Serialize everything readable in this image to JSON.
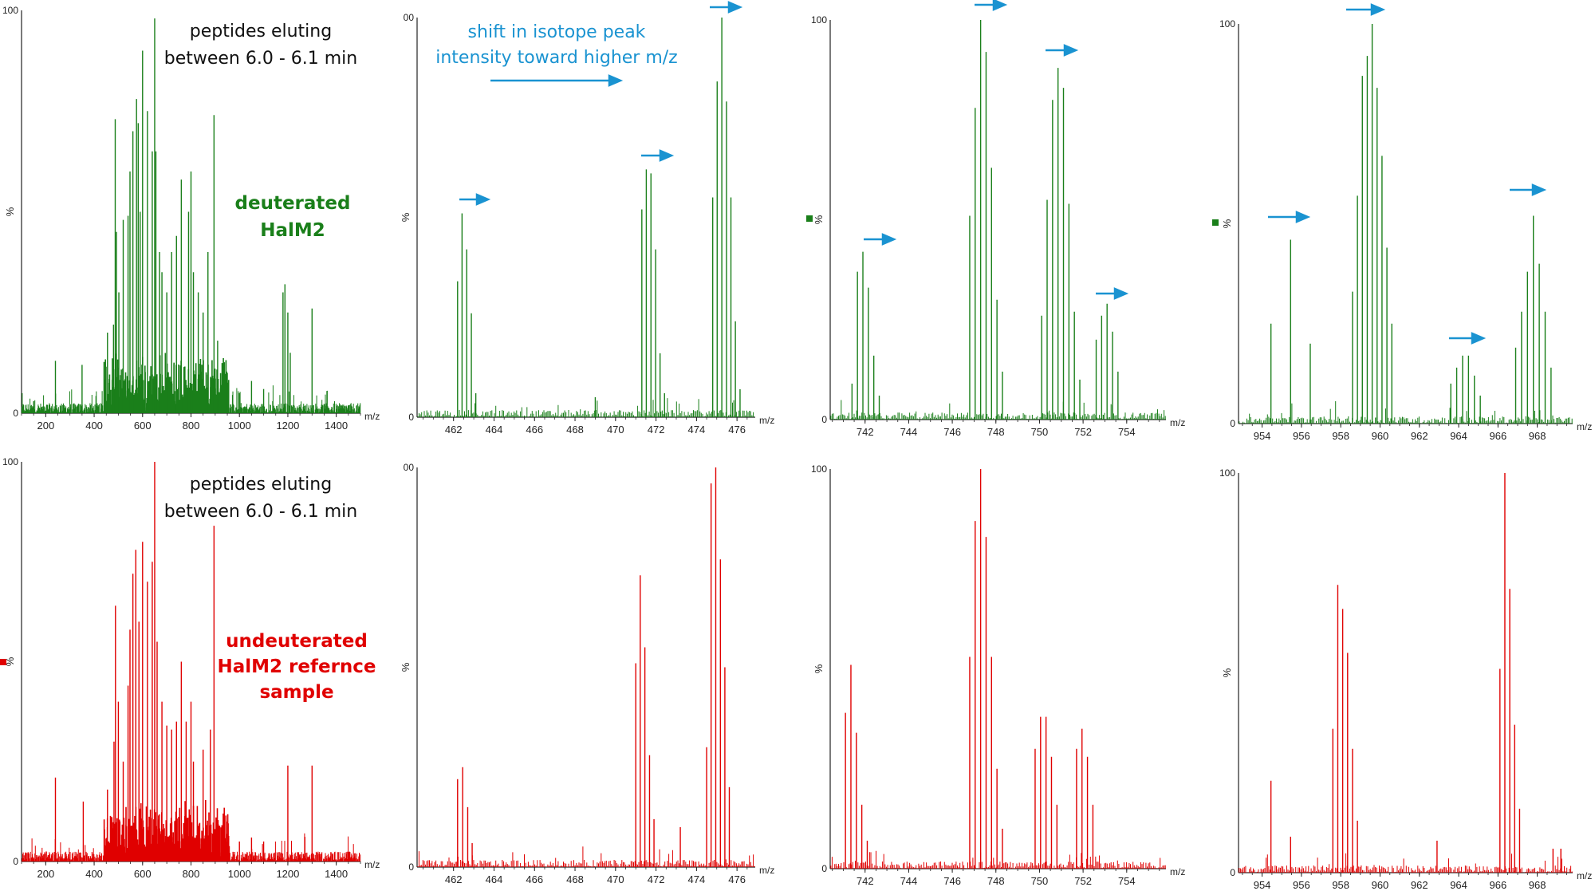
{
  "colors": {
    "deuterated": "#1a7f1a",
    "undeuterated": "#e00000",
    "annotation": "#1a93d1",
    "text": "#111111"
  },
  "panel_annotations": {
    "row1": {
      "elution": [
        "peptides eluting",
        "between 6.0 - 6.1 min"
      ],
      "sample": [
        "deuterated",
        "HalM2"
      ]
    },
    "row2": {
      "elution": [
        "peptides eluting",
        "between 6.0 - 6.1 min"
      ],
      "sample": [
        "undeuterated",
        "HalM2 refernce",
        "sample"
      ]
    },
    "shift_note": [
      "shift in isotope peak",
      "intensity toward higher m/z"
    ]
  },
  "chart_data": [
    {
      "type": "line",
      "row": 1,
      "col": 1,
      "series_color": "deuterated",
      "xlabel": "m/z",
      "ylabel": "%",
      "xlim": [
        100,
        1500
      ],
      "ylim": [
        0,
        100
      ],
      "xticks": [
        200,
        400,
        600,
        800,
        1000,
        1200,
        1400
      ],
      "yticks": [
        "0",
        "100"
      ],
      "peaks": [
        [
          150,
          3
        ],
        [
          240,
          13
        ],
        [
          350,
          12
        ],
        [
          455,
          20
        ],
        [
          480,
          22
        ],
        [
          487,
          73
        ],
        [
          492,
          45
        ],
        [
          502,
          30
        ],
        [
          520,
          48
        ],
        [
          540,
          49
        ],
        [
          548,
          60
        ],
        [
          560,
          70
        ],
        [
          575,
          78
        ],
        [
          582,
          72
        ],
        [
          590,
          50
        ],
        [
          600,
          90
        ],
        [
          620,
          75
        ],
        [
          640,
          65
        ],
        [
          650,
          98
        ],
        [
          655,
          65
        ],
        [
          670,
          40
        ],
        [
          680,
          35
        ],
        [
          700,
          30
        ],
        [
          720,
          40
        ],
        [
          740,
          44
        ],
        [
          760,
          58
        ],
        [
          790,
          50
        ],
        [
          800,
          60
        ],
        [
          810,
          35
        ],
        [
          830,
          30
        ],
        [
          850,
          25
        ],
        [
          870,
          40
        ],
        [
          895,
          74
        ],
        [
          910,
          18
        ],
        [
          950,
          10
        ],
        [
          1000,
          5
        ],
        [
          1050,
          8
        ],
        [
          1100,
          6
        ],
        [
          1180,
          30
        ],
        [
          1188,
          32
        ],
        [
          1200,
          25
        ],
        [
          1210,
          15
        ],
        [
          1300,
          26
        ]
      ]
    },
    {
      "type": "line",
      "row": 1,
      "col": 2,
      "series_color": "deuterated",
      "xlabel": "m/z",
      "ylabel": "%",
      "xlim": [
        460.2,
        476.9
      ],
      "ylim": [
        0,
        100
      ],
      "xticks": [
        462,
        464,
        466,
        468,
        470,
        472,
        474,
        476
      ],
      "yticks": [
        "0",
        "00"
      ],
      "peaks": [
        [
          462.2,
          34
        ],
        [
          462.42,
          51
        ],
        [
          462.65,
          42
        ],
        [
          462.88,
          26
        ],
        [
          463.1,
          6
        ],
        [
          469.0,
          5
        ],
        [
          471.3,
          52
        ],
        [
          471.52,
          62
        ],
        [
          471.75,
          61
        ],
        [
          471.98,
          42
        ],
        [
          472.2,
          16
        ],
        [
          472.42,
          6
        ],
        [
          474.8,
          55
        ],
        [
          475.02,
          84
        ],
        [
          475.25,
          100
        ],
        [
          475.48,
          79
        ],
        [
          475.7,
          55
        ],
        [
          475.92,
          24
        ],
        [
          476.15,
          7
        ]
      ]
    },
    {
      "type": "line",
      "row": 1,
      "col": 3,
      "series_color": "deuterated",
      "xlabel": "m/z",
      "ylabel": "%",
      "xlim": [
        740.4,
        755.8
      ],
      "ylim": [
        0,
        100
      ],
      "xticks": [
        742,
        744,
        746,
        748,
        750,
        752,
        754
      ],
      "yticks": [
        "0",
        "100"
      ],
      "peaks": [
        [
          741.4,
          9
        ],
        [
          741.65,
          37
        ],
        [
          741.9,
          42
        ],
        [
          742.15,
          33
        ],
        [
          742.4,
          16
        ],
        [
          742.65,
          6
        ],
        [
          746.8,
          51
        ],
        [
          747.05,
          78
        ],
        [
          747.3,
          100
        ],
        [
          747.55,
          92
        ],
        [
          747.8,
          63
        ],
        [
          748.05,
          30
        ],
        [
          748.3,
          12
        ],
        [
          750.1,
          26
        ],
        [
          750.35,
          55
        ],
        [
          750.6,
          80
        ],
        [
          750.85,
          88
        ],
        [
          751.1,
          83
        ],
        [
          751.35,
          54
        ],
        [
          751.6,
          27
        ],
        [
          751.85,
          10
        ],
        [
          752.6,
          20
        ],
        [
          752.85,
          26
        ],
        [
          753.1,
          29
        ],
        [
          753.35,
          22
        ],
        [
          753.6,
          12
        ]
      ]
    },
    {
      "type": "line",
      "row": 1,
      "col": 4,
      "series_color": "deuterated",
      "xlabel": "m/z",
      "ylabel": "%",
      "xlim": [
        952.8,
        969.8
      ],
      "ylim": [
        0,
        100
      ],
      "xticks": [
        954,
        956,
        958,
        960,
        962,
        964,
        966,
        968
      ],
      "yticks": [
        "0",
        "100"
      ],
      "peaks": [
        [
          954.45,
          25
        ],
        [
          955.45,
          46
        ],
        [
          956.45,
          20
        ],
        [
          958.6,
          33
        ],
        [
          958.85,
          57
        ],
        [
          959.1,
          87
        ],
        [
          959.35,
          92
        ],
        [
          959.6,
          100
        ],
        [
          959.85,
          84
        ],
        [
          960.1,
          67
        ],
        [
          960.35,
          44
        ],
        [
          960.6,
          25
        ],
        [
          963.6,
          10
        ],
        [
          963.9,
          14
        ],
        [
          964.2,
          17
        ],
        [
          964.5,
          17
        ],
        [
          964.8,
          12
        ],
        [
          965.1,
          7
        ],
        [
          966.9,
          19
        ],
        [
          967.2,
          28
        ],
        [
          967.5,
          38
        ],
        [
          967.8,
          52
        ],
        [
          968.1,
          40
        ],
        [
          968.4,
          28
        ],
        [
          968.7,
          14
        ]
      ]
    },
    {
      "type": "line",
      "row": 2,
      "col": 1,
      "series_color": "undeuterated",
      "xlabel": "m/z",
      "ylabel": "%",
      "xlim": [
        100,
        1500
      ],
      "ylim": [
        0,
        100
      ],
      "xticks": [
        200,
        400,
        600,
        800,
        1000,
        1200,
        1400
      ],
      "yticks": [
        "0",
        "100"
      ],
      "peaks": [
        [
          240,
          21
        ],
        [
          355,
          15
        ],
        [
          455,
          18
        ],
        [
          482,
          30
        ],
        [
          488,
          64
        ],
        [
          500,
          40
        ],
        [
          520,
          25
        ],
        [
          540,
          44
        ],
        [
          548,
          58
        ],
        [
          560,
          72
        ],
        [
          572,
          78
        ],
        [
          585,
          60
        ],
        [
          600,
          80
        ],
        [
          620,
          70
        ],
        [
          640,
          75
        ],
        [
          650,
          100
        ],
        [
          660,
          55
        ],
        [
          680,
          40
        ],
        [
          700,
          34
        ],
        [
          720,
          33
        ],
        [
          740,
          35
        ],
        [
          760,
          50
        ],
        [
          780,
          35
        ],
        [
          800,
          40
        ],
        [
          810,
          25
        ],
        [
          850,
          28
        ],
        [
          880,
          33
        ],
        [
          895,
          84
        ],
        [
          950,
          10
        ],
        [
          1000,
          5
        ],
        [
          1050,
          6
        ],
        [
          1100,
          5
        ],
        [
          1200,
          24
        ],
        [
          1300,
          24
        ]
      ]
    },
    {
      "type": "line",
      "row": 2,
      "col": 2,
      "series_color": "undeuterated",
      "xlabel": "m/z",
      "ylabel": "%",
      "xlim": [
        460.2,
        476.9
      ],
      "ylim": [
        0,
        100
      ],
      "xticks": [
        462,
        464,
        466,
        468,
        470,
        472,
        474,
        476
      ],
      "yticks": [
        "0",
        "00"
      ],
      "peaks": [
        [
          462.2,
          22
        ],
        [
          462.45,
          25
        ],
        [
          462.7,
          15
        ],
        [
          462.92,
          6
        ],
        [
          471.0,
          51
        ],
        [
          471.22,
          73
        ],
        [
          471.45,
          55
        ],
        [
          471.68,
          28
        ],
        [
          471.9,
          12
        ],
        [
          473.2,
          10
        ],
        [
          474.5,
          30
        ],
        [
          474.72,
          96
        ],
        [
          474.95,
          100
        ],
        [
          475.18,
          77
        ],
        [
          475.4,
          50
        ],
        [
          475.62,
          20
        ]
      ]
    },
    {
      "type": "line",
      "row": 2,
      "col": 3,
      "series_color": "undeuterated",
      "xlabel": "m/z",
      "ylabel": "%",
      "xlim": [
        740.4,
        755.8
      ],
      "ylim": [
        0,
        100
      ],
      "xticks": [
        742,
        744,
        746,
        748,
        750,
        752,
        754
      ],
      "yticks": [
        "0",
        "100"
      ],
      "peaks": [
        [
          741.1,
          39
        ],
        [
          741.35,
          51
        ],
        [
          741.6,
          34
        ],
        [
          741.85,
          16
        ],
        [
          742.1,
          7
        ],
        [
          746.8,
          53
        ],
        [
          747.05,
          87
        ],
        [
          747.3,
          100
        ],
        [
          747.55,
          83
        ],
        [
          747.8,
          53
        ],
        [
          748.05,
          25
        ],
        [
          748.3,
          10
        ],
        [
          749.8,
          30
        ],
        [
          750.05,
          38
        ],
        [
          750.3,
          38
        ],
        [
          750.55,
          28
        ],
        [
          750.8,
          16
        ],
        [
          751.7,
          30
        ],
        [
          751.95,
          35
        ],
        [
          752.2,
          28
        ],
        [
          752.45,
          16
        ]
      ]
    },
    {
      "type": "line",
      "row": 2,
      "col": 4,
      "series_color": "undeuterated",
      "xlabel": "m/z",
      "ylabel": "%",
      "xlim": [
        952.8,
        969.8
      ],
      "ylim": [
        0,
        100
      ],
      "xticks": [
        954,
        956,
        958,
        960,
        962,
        964,
        966,
        968
      ],
      "yticks": [
        "0",
        "100"
      ],
      "peaks": [
        [
          954.45,
          23
        ],
        [
          955.45,
          9
        ],
        [
          957.6,
          36
        ],
        [
          957.85,
          72
        ],
        [
          958.1,
          66
        ],
        [
          958.35,
          55
        ],
        [
          958.6,
          31
        ],
        [
          958.85,
          13
        ],
        [
          962.9,
          8
        ],
        [
          966.1,
          51
        ],
        [
          966.35,
          100
        ],
        [
          966.6,
          71
        ],
        [
          966.85,
          37
        ],
        [
          967.1,
          16
        ],
        [
          968.8,
          6
        ],
        [
          969.2,
          6
        ]
      ]
    }
  ]
}
